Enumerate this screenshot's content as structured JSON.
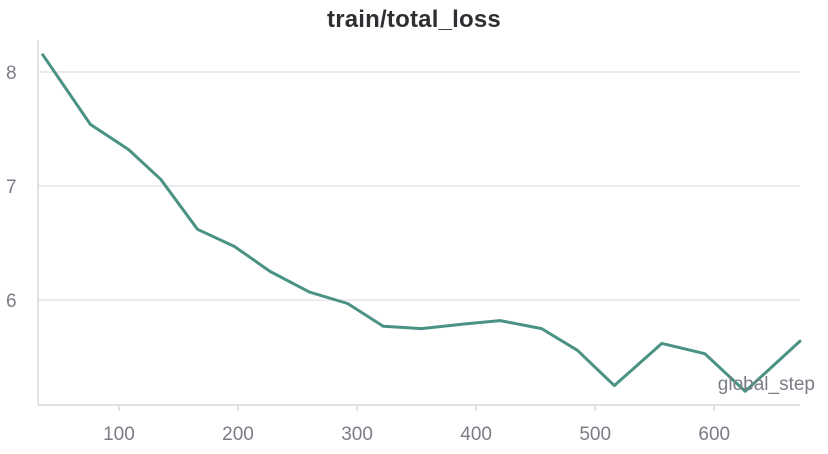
{
  "chart_data": {
    "type": "line",
    "title": "train/total_loss",
    "xlabel": "global_step",
    "ylabel": "",
    "xlim": [
      32,
      672
    ],
    "ylim": [
      5.08,
      8.28
    ],
    "xticks": [
      100,
      200,
      300,
      400,
      500,
      600
    ],
    "yticks": [
      6,
      7,
      8
    ],
    "grid": true,
    "series": [
      {
        "color": "#4a9384",
        "x": [
          36,
          76,
          108,
          135,
          166,
          197,
          227,
          260,
          292,
          322,
          354,
          390,
          420,
          455,
          485,
          516,
          556,
          592,
          626,
          672
        ],
        "y": [
          8.15,
          7.54,
          7.32,
          7.06,
          6.62,
          6.47,
          6.25,
          6.07,
          5.97,
          5.77,
          5.75,
          5.79,
          5.82,
          5.75,
          5.56,
          5.25,
          5.62,
          5.53,
          5.2,
          5.64
        ]
      }
    ]
  }
}
